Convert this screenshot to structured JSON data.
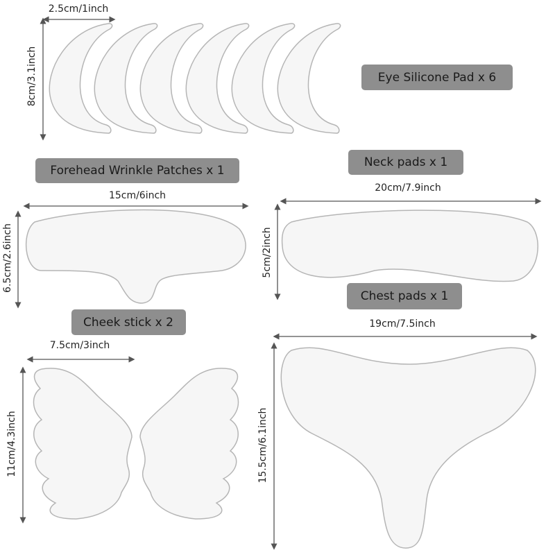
{
  "labels": {
    "eye": "Eye Silicone Pad x 6",
    "forehead": "Forehead Wrinkle Patches x 1",
    "neck": "Neck pads x 1",
    "chest": "Chest pads x 1",
    "cheek": "Cheek stick x 2"
  },
  "dimensions": {
    "eye_width": "2.5cm/1inch",
    "eye_height": "8cm/3.1inch",
    "forehead_width": "15cm/6inch",
    "forehead_height": "6.5cm/2.6inch",
    "neck_width": "20cm/7.9inch",
    "neck_height": "5cm/2inch",
    "chest_width": "19cm/7.5inch",
    "chest_height": "15.5cm/6.1inch",
    "cheek_width": "7.5cm/3inch",
    "cheek_height": "11cm/4.3inch"
  }
}
